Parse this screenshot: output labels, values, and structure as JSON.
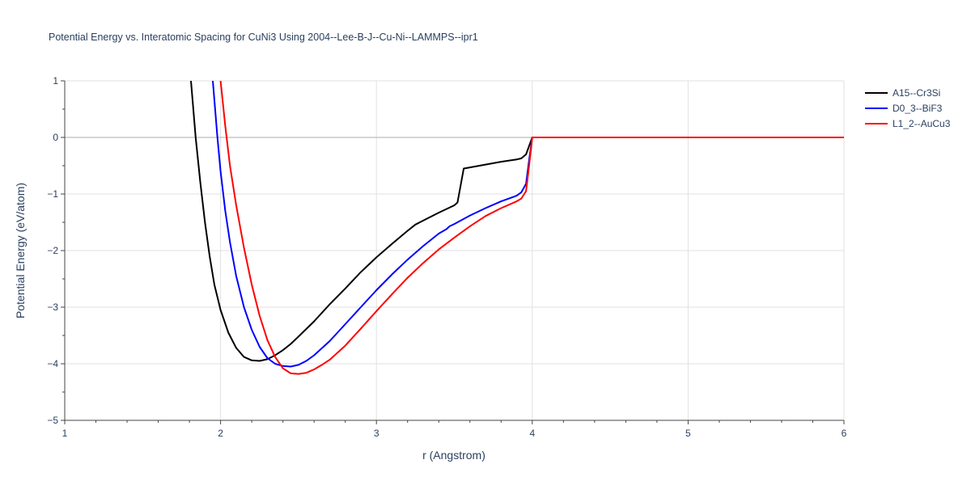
{
  "chart_data": {
    "type": "line",
    "title": "Potential Energy vs. Interatomic Spacing for CuNi3 Using 2004--Lee-B-J--Cu-Ni--LAMMPS--ipr1",
    "xlabel": "r (Angstrom)",
    "ylabel": "Potential Energy (eV/atom)",
    "xlim": [
      1,
      6
    ],
    "ylim": [
      -5,
      1
    ],
    "xticks": [
      1,
      2,
      3,
      4,
      5,
      6
    ],
    "xtick_labels": [
      "1",
      "2",
      "3",
      "4",
      "5",
      "6"
    ],
    "yticks": [
      1,
      0,
      -1,
      -2,
      -3,
      -4,
      -5
    ],
    "ytick_labels": [
      "1",
      "0",
      "−1",
      "−2",
      "−3",
      "−4",
      "−5"
    ],
    "grid": true,
    "legend_position": "top-right",
    "series": [
      {
        "name": "A15--Cr3Si",
        "color": "#000000",
        "x": [
          1.81,
          1.84,
          1.87,
          1.9,
          1.93,
          1.96,
          2.0,
          2.05,
          2.1,
          2.15,
          2.2,
          2.25,
          2.3,
          2.35,
          2.4,
          2.45,
          2.5,
          2.6,
          2.7,
          2.8,
          2.9,
          3.0,
          3.1,
          3.2,
          3.25,
          3.3,
          3.4,
          3.5,
          3.52,
          3.56,
          3.6,
          3.7,
          3.8,
          3.9,
          3.93,
          3.96,
          4.0,
          4.5,
          5.0,
          5.5,
          6.0
        ],
        "y": [
          1.0,
          0.0,
          -0.8,
          -1.5,
          -2.1,
          -2.6,
          -3.05,
          -3.45,
          -3.72,
          -3.88,
          -3.94,
          -3.95,
          -3.92,
          -3.85,
          -3.76,
          -3.65,
          -3.52,
          -3.25,
          -2.95,
          -2.67,
          -2.38,
          -2.12,
          -1.88,
          -1.65,
          -1.54,
          -1.47,
          -1.33,
          -1.2,
          -1.15,
          -0.55,
          -0.53,
          -0.48,
          -0.43,
          -0.39,
          -0.37,
          -0.3,
          0.0,
          0.0,
          0.0,
          0.0,
          0.0
        ]
      },
      {
        "name": "D0_3--BiF3",
        "color": "#0000ff",
        "x": [
          1.95,
          1.98,
          2.0,
          2.03,
          2.06,
          2.1,
          2.15,
          2.2,
          2.25,
          2.3,
          2.35,
          2.4,
          2.45,
          2.5,
          2.55,
          2.6,
          2.7,
          2.8,
          2.9,
          3.0,
          3.1,
          3.2,
          3.3,
          3.4,
          3.45,
          3.47,
          3.5,
          3.6,
          3.7,
          3.8,
          3.9,
          3.93,
          3.96,
          3.98,
          4.0,
          4.5,
          5.0,
          5.5,
          6.0
        ],
        "y": [
          1.0,
          0.0,
          -0.6,
          -1.3,
          -1.85,
          -2.45,
          -3.0,
          -3.4,
          -3.7,
          -3.9,
          -4.0,
          -4.04,
          -4.05,
          -4.02,
          -3.95,
          -3.85,
          -3.6,
          -3.3,
          -3.0,
          -2.7,
          -2.42,
          -2.16,
          -1.92,
          -1.7,
          -1.62,
          -1.57,
          -1.53,
          -1.38,
          -1.25,
          -1.13,
          -1.03,
          -0.97,
          -0.82,
          -0.4,
          0.0,
          0.0,
          0.0,
          0.0,
          0.0
        ]
      },
      {
        "name": "L1_2--AuCu3",
        "color": "#ff0000",
        "x": [
          2.0,
          2.03,
          2.06,
          2.1,
          2.15,
          2.2,
          2.25,
          2.3,
          2.35,
          2.4,
          2.45,
          2.5,
          2.55,
          2.6,
          2.65,
          2.7,
          2.8,
          2.9,
          3.0,
          3.1,
          3.2,
          3.3,
          3.4,
          3.5,
          3.6,
          3.7,
          3.8,
          3.9,
          3.93,
          3.96,
          3.98,
          4.0,
          4.5,
          5.0,
          5.5,
          6.0
        ],
        "y": [
          1.0,
          0.2,
          -0.5,
          -1.2,
          -1.95,
          -2.6,
          -3.15,
          -3.58,
          -3.88,
          -4.08,
          -4.17,
          -4.18,
          -4.16,
          -4.1,
          -4.02,
          -3.93,
          -3.68,
          -3.38,
          -3.07,
          -2.77,
          -2.48,
          -2.22,
          -1.98,
          -1.77,
          -1.57,
          -1.39,
          -1.25,
          -1.13,
          -1.08,
          -0.95,
          -0.5,
          0.0,
          0.0,
          0.0,
          0.0,
          0.0
        ]
      }
    ]
  }
}
